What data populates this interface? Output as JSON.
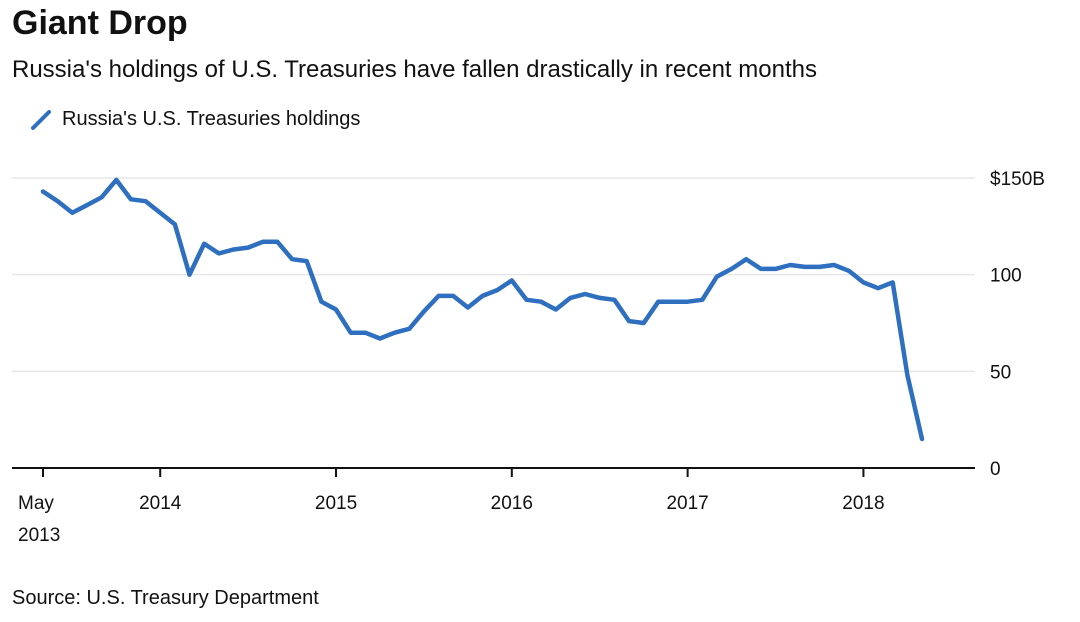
{
  "header": {
    "title": "Giant Drop",
    "subtitle": "Russia's holdings of U.S. Treasuries have fallen drastically in recent months"
  },
  "footer": {
    "source": "Source: U.S. Treasury Department"
  },
  "colors": {
    "line": "#2e6fbf",
    "grid": "#e6e6e6",
    "axis": "#111111"
  },
  "chart_data": {
    "type": "line",
    "title": "Giant Drop",
    "subtitle": "Russia's holdings of U.S. Treasuries have fallen drastically in recent months",
    "xlabel": "",
    "ylabel": "",
    "ylim": [
      0,
      150
    ],
    "xlim": [
      "2013-05",
      "2018-08"
    ],
    "grid": true,
    "legend_position": "top-left",
    "y_ticks": [
      {
        "value": 150,
        "label": "$150B"
      },
      {
        "value": 100,
        "label": "100"
      },
      {
        "value": 50,
        "label": "50"
      },
      {
        "value": 0,
        "label": "0"
      }
    ],
    "x_ticks": [
      {
        "value": "2013-05",
        "label": [
          "May",
          "2013"
        ]
      },
      {
        "value": "2014-01",
        "label": [
          "2014"
        ]
      },
      {
        "value": "2015-01",
        "label": [
          "2015"
        ]
      },
      {
        "value": "2016-01",
        "label": [
          "2016"
        ]
      },
      {
        "value": "2017-01",
        "label": [
          "2017"
        ]
      },
      {
        "value": "2018-01",
        "label": [
          "2018"
        ]
      }
    ],
    "series": [
      {
        "name": "Russia's U.S. Treasuries holdings",
        "points": [
          [
            "2013-05",
            143
          ],
          [
            "2013-06",
            138
          ],
          [
            "2013-07",
            132
          ],
          [
            "2013-08",
            136
          ],
          [
            "2013-09",
            140
          ],
          [
            "2013-10",
            149
          ],
          [
            "2013-11",
            139
          ],
          [
            "2013-12",
            138
          ],
          [
            "2014-01",
            132
          ],
          [
            "2014-02",
            126
          ],
          [
            "2014-03",
            100
          ],
          [
            "2014-04",
            116
          ],
          [
            "2014-05",
            111
          ],
          [
            "2014-06",
            113
          ],
          [
            "2014-07",
            114
          ],
          [
            "2014-08",
            117
          ],
          [
            "2014-09",
            117
          ],
          [
            "2014-10",
            108
          ],
          [
            "2014-11",
            107
          ],
          [
            "2014-12",
            86
          ],
          [
            "2015-01",
            82
          ],
          [
            "2015-02",
            70
          ],
          [
            "2015-03",
            70
          ],
          [
            "2015-04",
            67
          ],
          [
            "2015-05",
            70
          ],
          [
            "2015-06",
            72
          ],
          [
            "2015-07",
            81
          ],
          [
            "2015-08",
            89
          ],
          [
            "2015-09",
            89
          ],
          [
            "2015-10",
            83
          ],
          [
            "2015-11",
            89
          ],
          [
            "2015-12",
            92
          ],
          [
            "2016-01",
            97
          ],
          [
            "2016-02",
            87
          ],
          [
            "2016-03",
            86
          ],
          [
            "2016-04",
            82
          ],
          [
            "2016-05",
            88
          ],
          [
            "2016-06",
            90
          ],
          [
            "2016-07",
            88
          ],
          [
            "2016-08",
            87
          ],
          [
            "2016-09",
            76
          ],
          [
            "2016-10",
            75
          ],
          [
            "2016-11",
            86
          ],
          [
            "2016-12",
            86
          ],
          [
            "2017-01",
            86
          ],
          [
            "2017-02",
            87
          ],
          [
            "2017-03",
            99
          ],
          [
            "2017-04",
            103
          ],
          [
            "2017-05",
            108
          ],
          [
            "2017-06",
            103
          ],
          [
            "2017-07",
            103
          ],
          [
            "2017-08",
            105
          ],
          [
            "2017-09",
            104
          ],
          [
            "2017-10",
            104
          ],
          [
            "2017-11",
            105
          ],
          [
            "2017-12",
            102
          ],
          [
            "2018-01",
            96
          ],
          [
            "2018-02",
            93
          ],
          [
            "2018-03",
            96
          ],
          [
            "2018-04",
            48
          ],
          [
            "2018-05",
            15
          ]
        ]
      }
    ]
  }
}
